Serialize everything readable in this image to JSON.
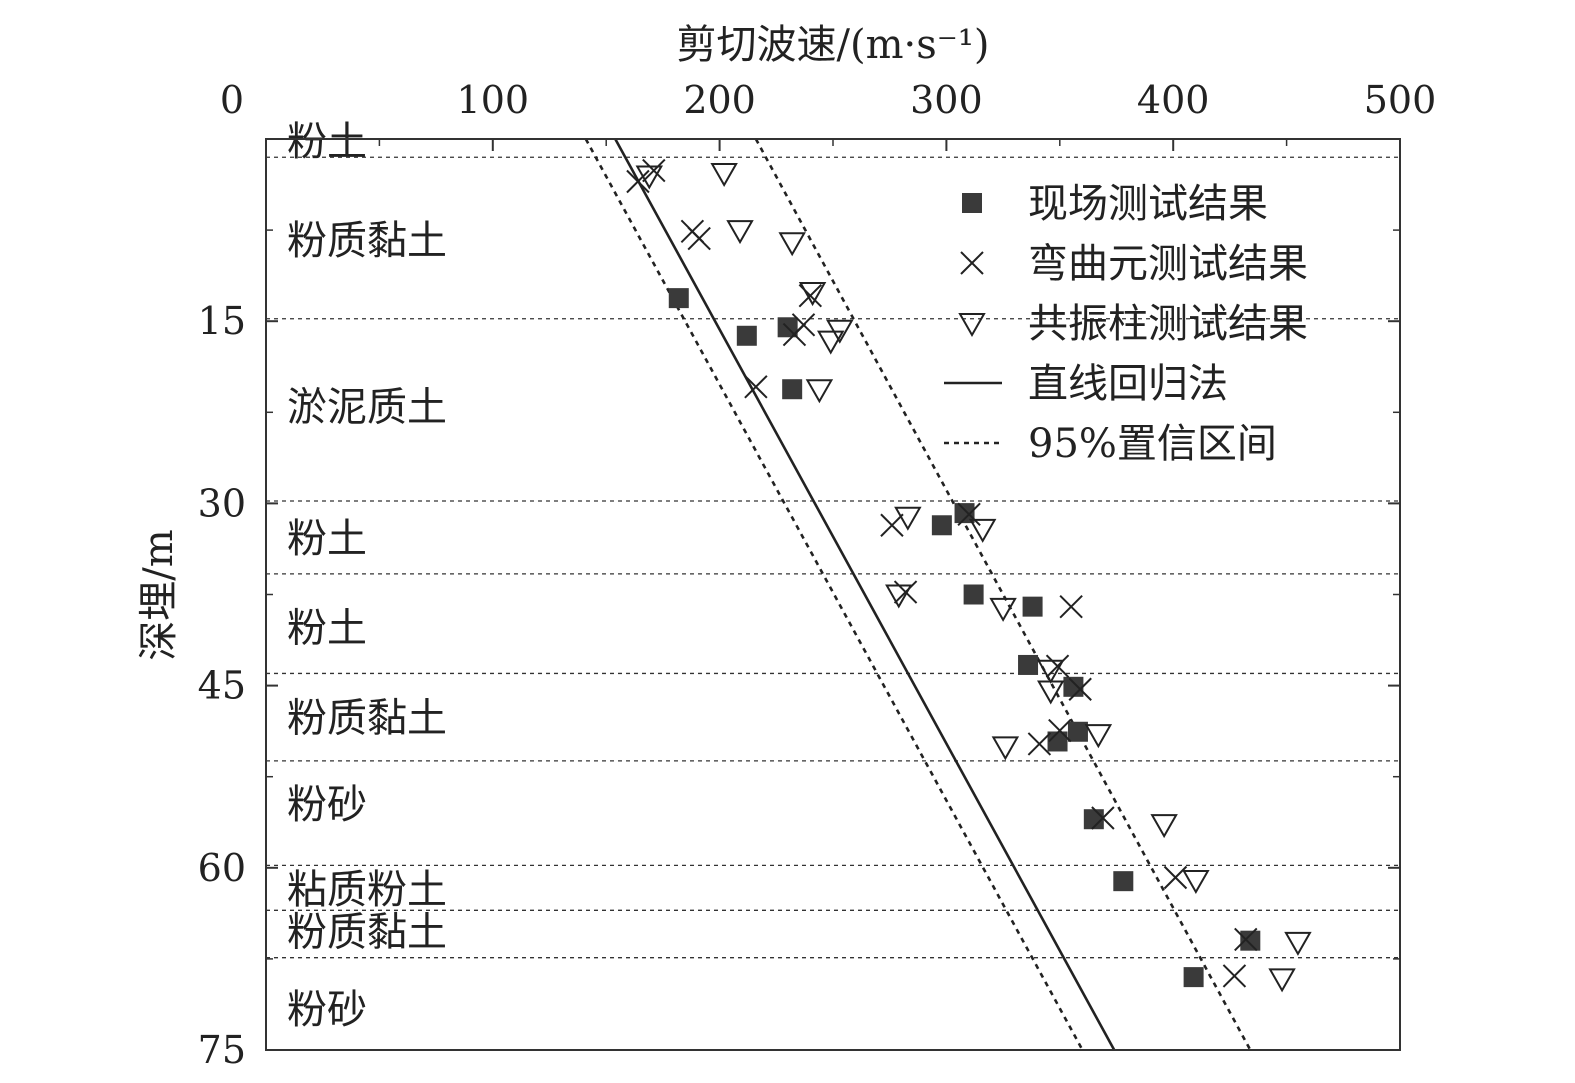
{
  "chart_data": {
    "type": "scatter",
    "xlabel": "剪切波速/(m·s⁻¹)",
    "ylabel": "深埋/m",
    "xlim": [
      0,
      500
    ],
    "ylim": [
      0,
      75
    ],
    "y_inverted": true,
    "x_axis_position": "top",
    "x_ticks": [
      "0",
      "100",
      "200",
      "300",
      "400",
      "500"
    ],
    "y_ticks": [
      "15",
      "30",
      "45",
      "60",
      "75"
    ],
    "grid": false,
    "legend_position": "top-right",
    "layer_boundaries": [
      1.5,
      14.8,
      29.8,
      35.8,
      44.0,
      51.2,
      59.8,
      63.5,
      67.4
    ],
    "layers": [
      {
        "label": "粉土",
        "depth": 0.5
      },
      {
        "label": "粉质黏土",
        "depth": 8.3
      },
      {
        "label": "淤泥质土",
        "depth": 22.0
      },
      {
        "label": "粉土",
        "depth": 32.8
      },
      {
        "label": "粉土",
        "depth": 40.2
      },
      {
        "label": "粉质黏土",
        "depth": 47.6
      },
      {
        "label": "粉砂",
        "depth": 54.7
      },
      {
        "label": "粘质粉土",
        "depth": 61.7
      },
      {
        "label": "粉质黏土",
        "depth": 65.2
      },
      {
        "label": "粉砂",
        "depth": 71.6
      }
    ],
    "series": [
      {
        "name": "现场测试结果",
        "marker": "square",
        "color": "#3a3a3a",
        "points": [
          [
            182,
            13.1
          ],
          [
            212,
            16.2
          ],
          [
            230,
            15.5
          ],
          [
            232,
            20.6
          ],
          [
            308,
            30.8
          ],
          [
            298,
            31.8
          ],
          [
            312,
            37.5
          ],
          [
            338,
            38.5
          ],
          [
            336,
            43.3
          ],
          [
            356,
            45.1
          ],
          [
            358,
            48.8
          ],
          [
            349,
            49.6
          ],
          [
            365,
            56.0
          ],
          [
            378,
            61.1
          ],
          [
            434,
            66.0
          ],
          [
            409,
            69.0
          ]
        ]
      },
      {
        "name": "弯曲元测试结果",
        "marker": "x",
        "color": "#222222",
        "points": [
          [
            164,
            3.5
          ],
          [
            171,
            2.6
          ],
          [
            188,
            7.6
          ],
          [
            191,
            8.2
          ],
          [
            240,
            12.9
          ],
          [
            233,
            16.1
          ],
          [
            237,
            15.3
          ],
          [
            216,
            20.4
          ],
          [
            276,
            31.8
          ],
          [
            310,
            30.9
          ],
          [
            282,
            37.3
          ],
          [
            355,
            38.5
          ],
          [
            349,
            43.4
          ],
          [
            359,
            45.3
          ],
          [
            350,
            48.7
          ],
          [
            341,
            49.8
          ],
          [
            369,
            55.9
          ],
          [
            401,
            60.8
          ],
          [
            432,
            65.9
          ],
          [
            427,
            68.9
          ]
        ]
      },
      {
        "name": "共振柱测试结果",
        "marker": "triangle-down",
        "color": "#222222",
        "points": [
          [
            202,
            2.8
          ],
          [
            169,
            3.0
          ],
          [
            209,
            7.5
          ],
          [
            232,
            8.5
          ],
          [
            241,
            12.6
          ],
          [
            253,
            15.7
          ],
          [
            249,
            16.6
          ],
          [
            244,
            20.6
          ],
          [
            283,
            31.1
          ],
          [
            316,
            32.1
          ],
          [
            279,
            37.5
          ],
          [
            325,
            38.6
          ],
          [
            346,
            43.7
          ],
          [
            346,
            45.4
          ],
          [
            367,
            49.0
          ],
          [
            326,
            50.0
          ],
          [
            396,
            56.4
          ],
          [
            410,
            61.0
          ],
          [
            455,
            66.1
          ],
          [
            448,
            69.1
          ]
        ]
      }
    ],
    "fits": [
      {
        "name": "直线回归法",
        "style": "solid",
        "points": [
          [
            154,
            0
          ],
          [
            374,
            75
          ]
        ]
      },
      {
        "name": "95%置信区间",
        "style": "dotted",
        "points": [
          [
            141,
            0
          ],
          [
            360,
            75
          ]
        ]
      },
      {
        "name": "95%置信区间",
        "style": "dotted",
        "points": [
          [
            216,
            0
          ],
          [
            434,
            75
          ]
        ],
        "in_legend": false
      }
    ],
    "legend": [
      {
        "label": "现场测试结果",
        "marker": "square"
      },
      {
        "label": "弯曲元测试结果",
        "marker": "x"
      },
      {
        "label": "共振柱测试结果",
        "marker": "triangle-down"
      },
      {
        "label": "直线回归法",
        "marker": "solid-line"
      },
      {
        "label": "95%置信区间",
        "marker": "dotted-line"
      }
    ]
  }
}
